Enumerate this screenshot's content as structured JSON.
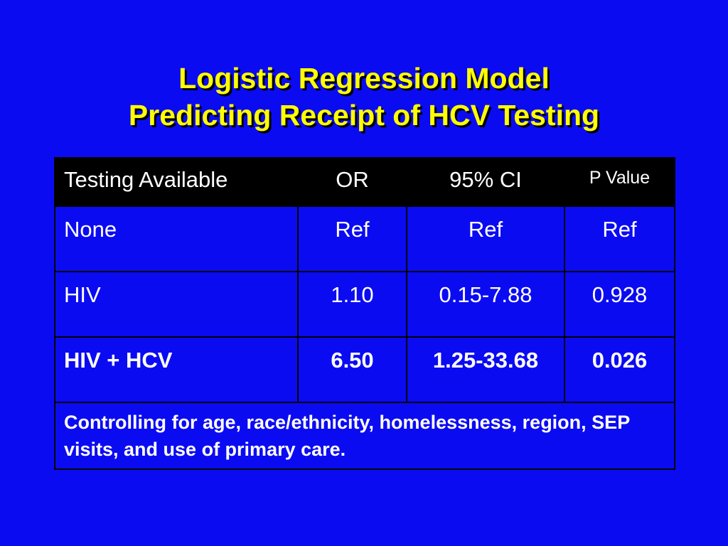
{
  "slide": {
    "title_line1": "Logistic Regression Model",
    "title_line2": "Predicting Receipt of HCV Testing"
  },
  "colors": {
    "background": "#0b0bf2",
    "title": "#ffff00",
    "header_background": "#000000",
    "text": "#ffffff"
  },
  "table": {
    "headers": [
      "Testing Available",
      "OR",
      "95% CI",
      "P Value"
    ],
    "rows": [
      {
        "testing": "None",
        "or": "Ref",
        "ci": "Ref",
        "p": "Ref"
      },
      {
        "testing": "HIV",
        "or": "1.10",
        "ci": "0.15-7.88",
        "p": "0.928"
      },
      {
        "testing": "HIV + HCV",
        "or": "6.50",
        "ci": "1.25-33.68",
        "p": "0.026"
      }
    ],
    "footnote": "Controlling for age, race/ethnicity, homelessness, region, SEP visits, and use of primary care."
  }
}
